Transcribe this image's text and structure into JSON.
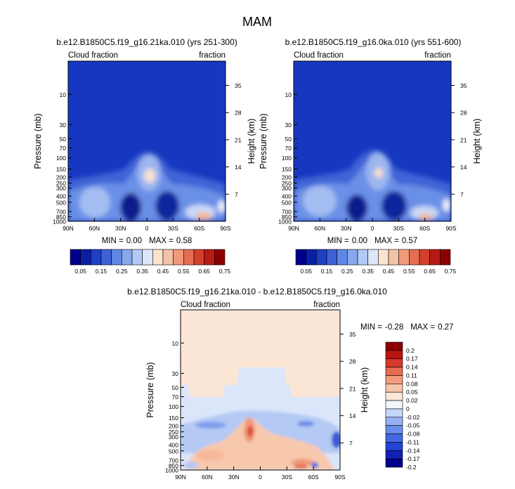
{
  "figure": {
    "title": "MAM"
  },
  "colors": {
    "main_scale": [
      "#00008b",
      "#0a1fa8",
      "#1f3fc4",
      "#3d62d6",
      "#5f86e4",
      "#88a8ee",
      "#b3c9f5",
      "#dde6fa",
      "#fbe3d0",
      "#f5c2a6",
      "#f09a7a",
      "#e66d52",
      "#d33f2d",
      "#b81a14",
      "#8b0000"
    ],
    "diff_scale": [
      "#00008b",
      "#0f22b5",
      "#2444d6",
      "#4468e4",
      "#6a8ded",
      "#96b2f3",
      "#c6d6f8",
      "#f3f6fc",
      "#fce7d8",
      "#f8c5a8",
      "#f39a7c",
      "#e86a50",
      "#d6382b",
      "#b81512",
      "#8b0000"
    ],
    "plot_bg_main": "#1638c0",
    "plot_bg_diff": "#fbe6d6"
  },
  "chart_data": [
    {
      "type": "contour",
      "title": "b.e12.B1850C5.f19_g16.21ka.010 (yrs 251-300)",
      "left_string": "Cloud fraction",
      "right_string": "fraction",
      "xlabel": "",
      "ylabel": "Pressure (mb)",
      "y2label": "Height (km)",
      "x_ticks": [
        "90N",
        "60N",
        "30N",
        "0",
        "30S",
        "60S",
        "90S"
      ],
      "y_ticks": [
        "10",
        "30",
        "50",
        "70",
        "100",
        "150",
        "200",
        "250",
        "300",
        "400",
        "500",
        "700",
        "850",
        "1000"
      ],
      "y2_ticks": [
        "35",
        "28",
        "21",
        "14",
        "7"
      ],
      "min_label": "MIN =",
      "min_value": "0.00",
      "max_label": "MAX =",
      "max_value": "0.58"
    },
    {
      "type": "contour",
      "title": "b.e12.B1850C5.f19_g16.0ka.010 (yrs 551-600)",
      "left_string": "Cloud fraction",
      "right_string": "fraction",
      "xlabel": "",
      "ylabel": "Pressure (mb)",
      "y2label": "Height (km)",
      "x_ticks": [
        "90N",
        "60N",
        "30N",
        "0",
        "30S",
        "60S",
        "90S"
      ],
      "y_ticks": [
        "10",
        "30",
        "50",
        "70",
        "100",
        "150",
        "200",
        "250",
        "300",
        "400",
        "500",
        "700",
        "850",
        "1000"
      ],
      "y2_ticks": [
        "35",
        "28",
        "21",
        "14",
        "7"
      ],
      "min_label": "MIN =",
      "min_value": "0.00",
      "max_label": "MAX =",
      "max_value": "0.57"
    },
    {
      "type": "contour",
      "title": "b.e12.B1850C5.f19_g16.21ka.010 - b.e12.B1850C5.f19_g16.0ka.010",
      "left_string": "Cloud fraction",
      "right_string": "fraction",
      "xlabel": "",
      "ylabel": "Pressure (mb)",
      "y2label": "Height (km)",
      "x_ticks": [
        "90N",
        "60N",
        "30N",
        "0",
        "30S",
        "60S",
        "90S"
      ],
      "y_ticks": [
        "10",
        "30",
        "50",
        "70",
        "100",
        "150",
        "200",
        "250",
        "300",
        "400",
        "500",
        "700",
        "850",
        "1000"
      ],
      "y2_ticks": [
        "35",
        "28",
        "21",
        "14",
        "7"
      ],
      "min_label": "MIN =",
      "min_value": "-0.28",
      "max_label": "MAX =",
      "max_value": "0.27"
    }
  ],
  "main_colorbar": {
    "labels": [
      "0.05",
      "0.15",
      "0.25",
      "0.35",
      "0.45",
      "0.55",
      "0.65",
      "0.75"
    ]
  },
  "diff_colorbar": {
    "labels": [
      "0.2",
      "0.17",
      "0.14",
      "0.11",
      "0.08",
      "0.05",
      "0.02",
      "0",
      "-0.02",
      "-0.05",
      "-0.08",
      "-0.11",
      "-0.14",
      "-0.17",
      "-0.2"
    ]
  }
}
